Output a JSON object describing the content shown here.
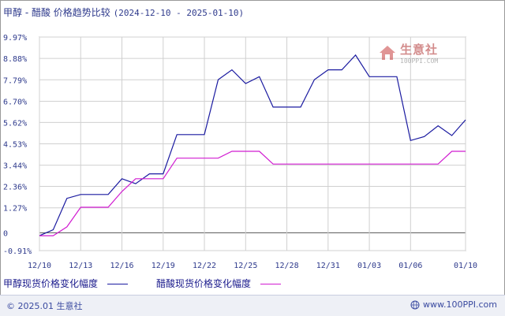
{
  "header": {
    "title": "甲醇 - 醋酸 价格趋势比较",
    "date_range": "(2024-12-10 - 2025-01-10)"
  },
  "watermark": {
    "brand": "生意社",
    "url": "100PPI.COM"
  },
  "footer": {
    "copyright": "© 2025.01 生意社",
    "site": "www.100PPI.com"
  },
  "colors": {
    "series1": "#1a1aa0",
    "series2": "#d11cd1",
    "grid": "#d0d0d0",
    "zero": "#555555",
    "axis_text": "#2e3a8c"
  },
  "chart_data": {
    "type": "line",
    "title": "甲醇 - 醋酸 价格趋势比较",
    "xlabel": "",
    "ylabel": "",
    "x_ticks": [
      "12/10",
      "12/13",
      "12/16",
      "12/19",
      "12/22",
      "12/25",
      "12/28",
      "12/31",
      "01/03",
      "01/06",
      "01/10"
    ],
    "y_ticks": [
      "9.97%",
      "8.88%",
      "7.79%",
      "6.70%",
      "5.62%",
      "4.53%",
      "3.44%",
      "2.36%",
      "1.27%",
      "0",
      "-0.91%"
    ],
    "y_tick_values": [
      9.97,
      8.88,
      7.79,
      6.7,
      5.62,
      4.53,
      3.44,
      2.36,
      1.27,
      0,
      -0.91
    ],
    "ylim": [
      -0.91,
      9.97
    ],
    "xlim": [
      "12/10",
      "01/10"
    ],
    "grid": true,
    "legend_position": "bottom",
    "series": [
      {
        "name": "甲醇现货价格变化幅度",
        "points": [
          [
            "12/10",
            -0.15
          ],
          [
            "12/11",
            0.15
          ],
          [
            "12/12",
            1.75
          ],
          [
            "12/13",
            1.95
          ],
          [
            "12/14",
            1.95
          ],
          [
            "12/15",
            1.95
          ],
          [
            "12/16",
            2.75
          ],
          [
            "12/17",
            2.5
          ],
          [
            "12/18",
            3.0
          ],
          [
            "12/19",
            3.0
          ],
          [
            "12/20",
            5.0
          ],
          [
            "12/21",
            5.0
          ],
          [
            "12/22",
            5.0
          ],
          [
            "12/23",
            7.8
          ],
          [
            "12/24",
            8.3
          ],
          [
            "12/25",
            7.6
          ],
          [
            "12/26",
            7.95
          ],
          [
            "12/27",
            6.4
          ],
          [
            "12/28",
            6.4
          ],
          [
            "12/29",
            6.4
          ],
          [
            "12/30",
            7.8
          ],
          [
            "12/31",
            8.3
          ],
          [
            "01/01",
            8.3
          ],
          [
            "01/02",
            9.05
          ],
          [
            "01/03",
            7.95
          ],
          [
            "01/04",
            7.95
          ],
          [
            "01/05",
            7.95
          ],
          [
            "01/06",
            4.7
          ],
          [
            "01/07",
            4.9
          ],
          [
            "01/08",
            5.45
          ],
          [
            "01/09",
            4.95
          ],
          [
            "01/10",
            5.75
          ]
        ]
      },
      {
        "name": "醋酸现货价格变化幅度",
        "points": [
          [
            "12/10",
            -0.15
          ],
          [
            "12/11",
            -0.15
          ],
          [
            "12/12",
            0.3
          ],
          [
            "12/13",
            1.3
          ],
          [
            "12/14",
            1.3
          ],
          [
            "12/15",
            1.3
          ],
          [
            "12/16",
            2.1
          ],
          [
            "12/17",
            2.75
          ],
          [
            "12/18",
            2.75
          ],
          [
            "12/19",
            2.75
          ],
          [
            "12/20",
            3.8
          ],
          [
            "12/21",
            3.8
          ],
          [
            "12/22",
            3.8
          ],
          [
            "12/23",
            3.8
          ],
          [
            "12/24",
            4.15
          ],
          [
            "12/25",
            4.15
          ],
          [
            "12/26",
            4.15
          ],
          [
            "12/27",
            3.5
          ],
          [
            "12/28",
            3.5
          ],
          [
            "12/29",
            3.5
          ],
          [
            "12/30",
            3.5
          ],
          [
            "12/31",
            3.5
          ],
          [
            "01/01",
            3.5
          ],
          [
            "01/02",
            3.5
          ],
          [
            "01/03",
            3.5
          ],
          [
            "01/04",
            3.5
          ],
          [
            "01/05",
            3.5
          ],
          [
            "01/06",
            3.5
          ],
          [
            "01/07",
            3.5
          ],
          [
            "01/08",
            3.5
          ],
          [
            "01/09",
            4.15
          ],
          [
            "01/10",
            4.15
          ]
        ]
      }
    ]
  }
}
